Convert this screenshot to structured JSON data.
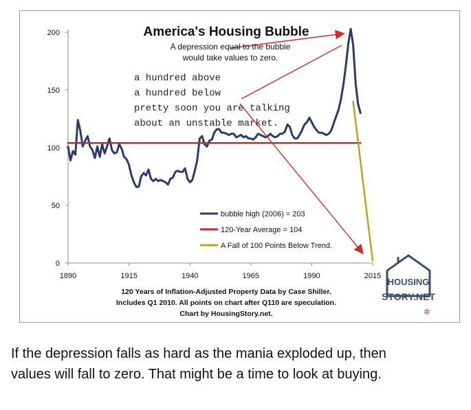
{
  "chart_data": {
    "type": "line",
    "title": "America's Housing Bubble",
    "subtitle_lines": [
      "A depression equal to the bubble",
      "would take values to zero."
    ],
    "annotation_lines": [
      "a hundred above",
      "a hundred below",
      "pretty soon you are talking",
      "about an unstable market."
    ],
    "footer_lines": [
      "120 Years of Inflation-Adjusted Property Data by Case Shiller.",
      "Includes Q1 2010.  All points on chart after Q110 are speculation.",
      "Chart by HousingStory.net."
    ],
    "x_ticks": [
      "1890",
      "1915",
      "1940",
      "1965",
      "1990",
      "2015"
    ],
    "y_ticks": [
      "200",
      "150",
      "100",
      "50",
      "0"
    ],
    "xlim": [
      1890,
      2015
    ],
    "ylim": [
      0,
      200
    ],
    "grid": false,
    "legend_position": "bottom-right",
    "series": [
      {
        "name": "bubble high (2006) = 203",
        "color": "#2b3a67",
        "x": [
          1890,
          1891,
          1892,
          1893,
          1894,
          1895,
          1896,
          1897,
          1898,
          1899,
          1900,
          1901,
          1902,
          1903,
          1904,
          1905,
          1906,
          1907,
          1908,
          1909,
          1910,
          1911,
          1912,
          1913,
          1914,
          1915,
          1916,
          1917,
          1918,
          1919,
          1920,
          1921,
          1922,
          1923,
          1924,
          1925,
          1926,
          1927,
          1928,
          1929,
          1930,
          1931,
          1932,
          1933,
          1934,
          1935,
          1936,
          1937,
          1938,
          1939,
          1940,
          1941,
          1942,
          1943,
          1944,
          1945,
          1946,
          1947,
          1948,
          1949,
          1950,
          1951,
          1952,
          1953,
          1954,
          1955,
          1956,
          1957,
          1958,
          1959,
          1960,
          1961,
          1962,
          1963,
          1964,
          1965,
          1966,
          1967,
          1968,
          1969,
          1970,
          1971,
          1972,
          1973,
          1974,
          1975,
          1976,
          1977,
          1978,
          1979,
          1980,
          1981,
          1982,
          1983,
          1984,
          1985,
          1986,
          1987,
          1988,
          1989,
          1990,
          1991,
          1992,
          1993,
          1994,
          1995,
          1996,
          1997,
          1998,
          1999,
          2000,
          2001,
          2002,
          2003,
          2004,
          2005,
          2006,
          2007,
          2008,
          2009,
          2010
        ],
        "values": [
          101,
          89,
          97,
          94,
          124,
          115,
          101,
          106,
          110,
          101,
          98,
          91,
          101,
          92,
          103,
          95,
          101,
          108,
          98,
          95,
          96,
          103,
          99,
          92,
          90,
          85,
          76,
          70,
          66,
          66,
          75,
          78,
          76,
          81,
          73,
          71,
          73,
          71,
          72,
          71,
          70,
          68,
          73,
          74,
          79,
          80,
          79,
          79,
          82,
          73,
          70,
          72,
          80,
          89,
          108,
          110,
          103,
          101,
          106,
          107,
          113,
          116,
          116,
          113,
          113,
          112,
          111,
          112,
          112,
          109,
          110,
          111,
          109,
          110,
          108,
          108,
          107,
          109,
          112,
          111,
          110,
          109,
          110,
          112,
          110,
          109,
          110,
          112,
          112,
          114,
          120,
          118,
          111,
          108,
          108,
          111,
          115,
          120,
          122,
          126,
          122,
          118,
          115,
          113,
          113,
          112,
          111,
          112,
          115,
          121,
          127,
          133,
          142,
          155,
          171,
          190,
          203,
          189,
          156,
          138,
          130
        ]
      },
      {
        "name": "120-Year Average = 104",
        "color": "#c8262b",
        "x": [
          1890,
          2010
        ],
        "values": [
          104,
          104
        ]
      },
      {
        "name": "A Fall of 100 Points Below Trend.",
        "color": "#c29f1f",
        "x": [
          2007,
          2015
        ],
        "values": [
          140,
          2
        ]
      }
    ]
  },
  "logo": {
    "line1": "HOUSING",
    "line2": "STORY.NET"
  },
  "caption_lines": [
    "If the depression falls as hard as the mania exploded up, then",
    "values will fall to zero. That might be a time to look at buying."
  ]
}
